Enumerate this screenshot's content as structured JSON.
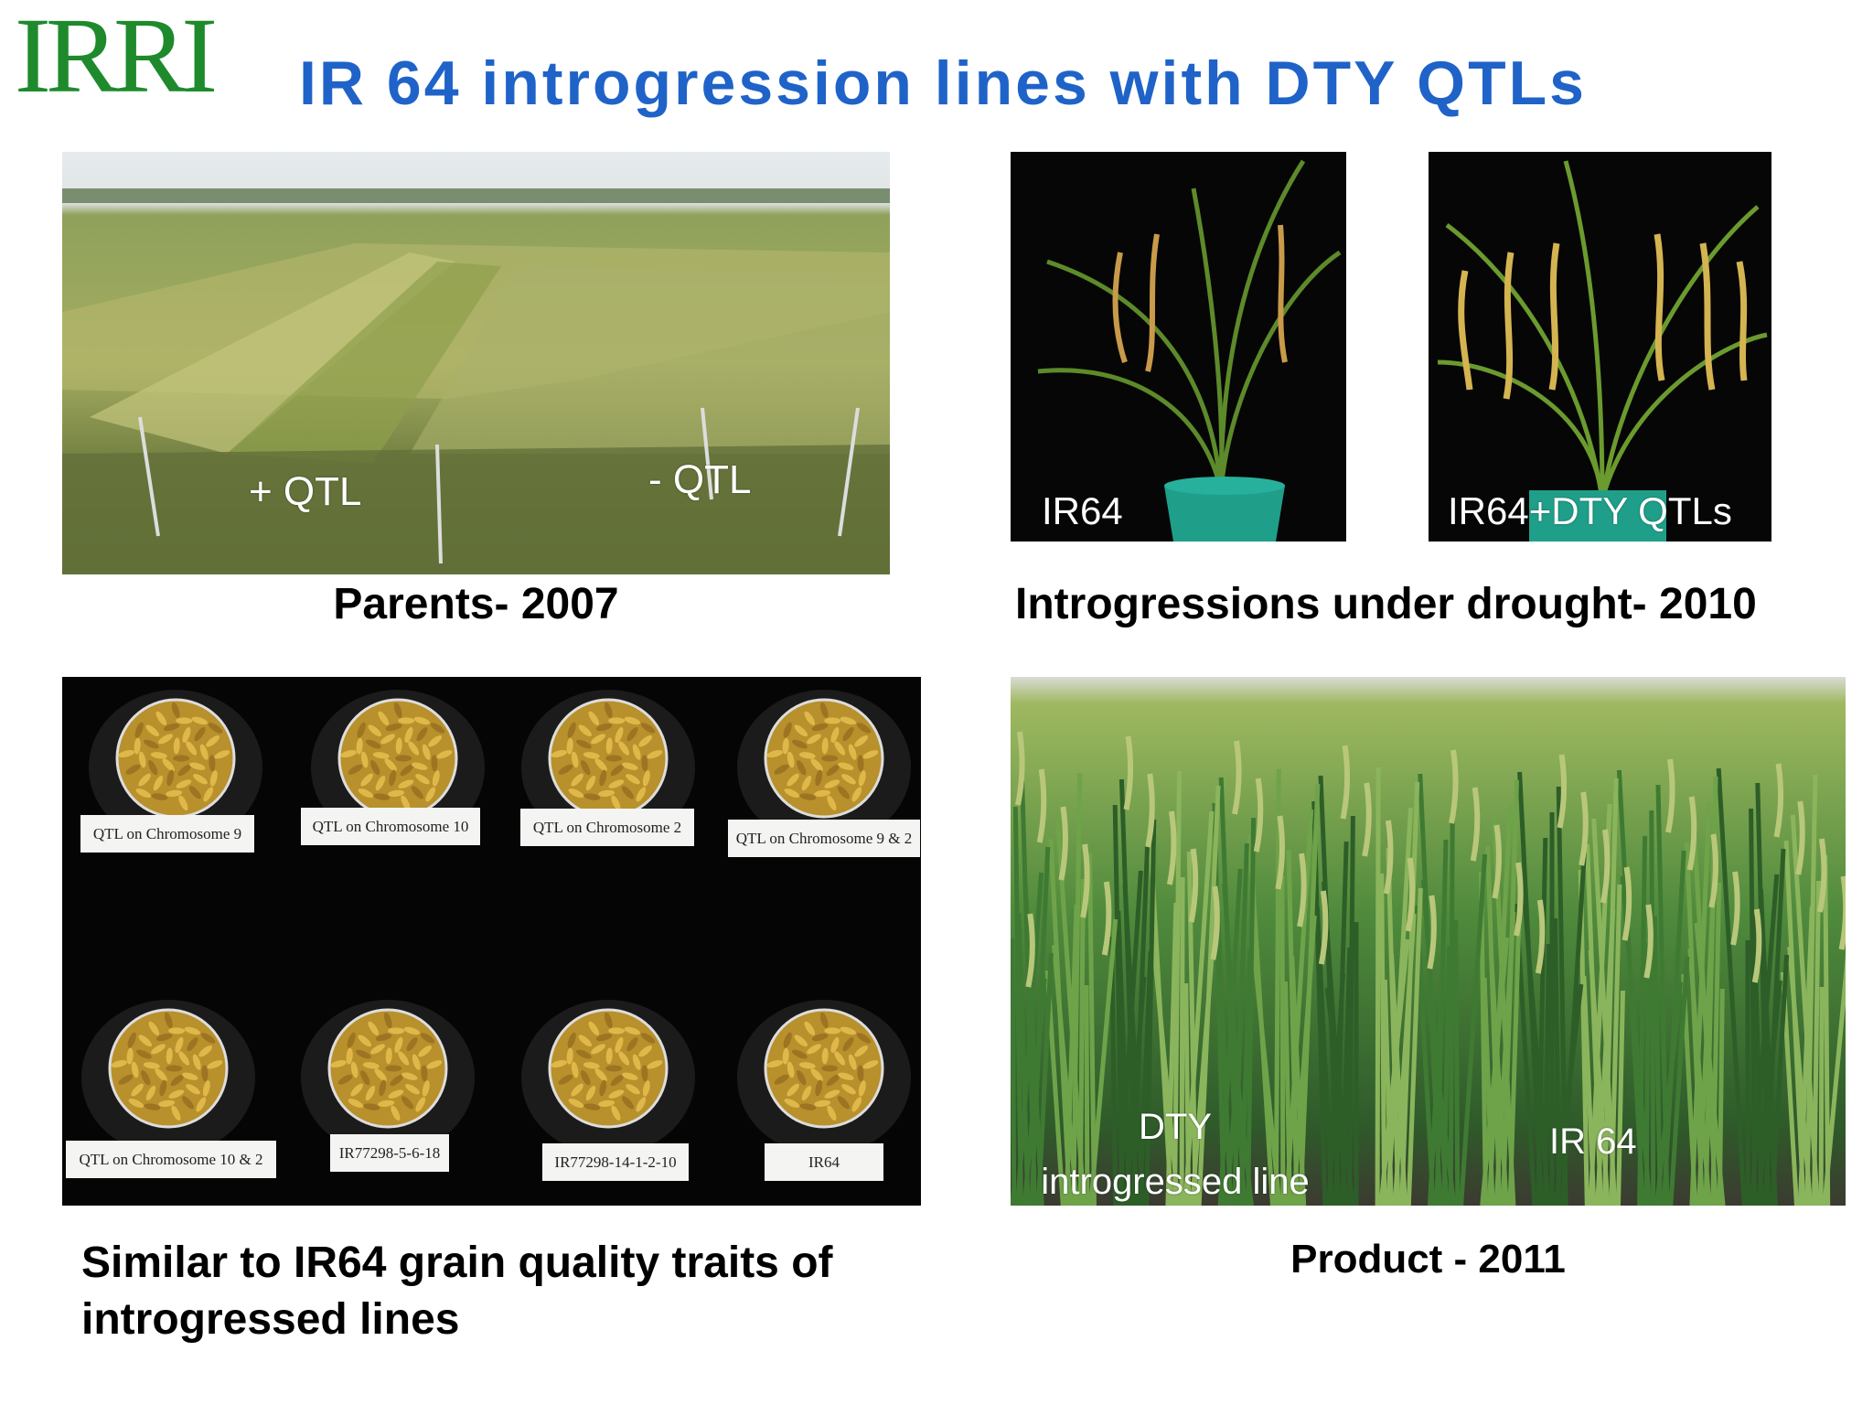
{
  "header": {
    "logo": "IRRI",
    "title": "IR 64 introgression lines with DTY QTLs"
  },
  "panels": [
    {
      "caption": "Parents- 2007",
      "photo_labels": [
        "+ QTL",
        "- QTL"
      ]
    },
    {
      "caption": "Introgressions under drought- 2010",
      "photo_labels": [
        "IR64",
        "IR64+DTY QTLs"
      ]
    },
    {
      "caption": "Similar to IR64 grain quality traits of introgressed lines",
      "dish_labels": [
        "QTL on Chromosome 9",
        "QTL on Chromosome 10",
        "QTL on Chromosome 2",
        "QTL on Chromosome 9 & 2",
        "QTL on Chromosome 10 & 2",
        "IR77298-5-6-18",
        "IR77298-14-1-2-10",
        "IR64"
      ]
    },
    {
      "caption": "Product - 2011",
      "photo_labels": [
        "DTY introgressed line",
        "IR 64"
      ]
    }
  ]
}
